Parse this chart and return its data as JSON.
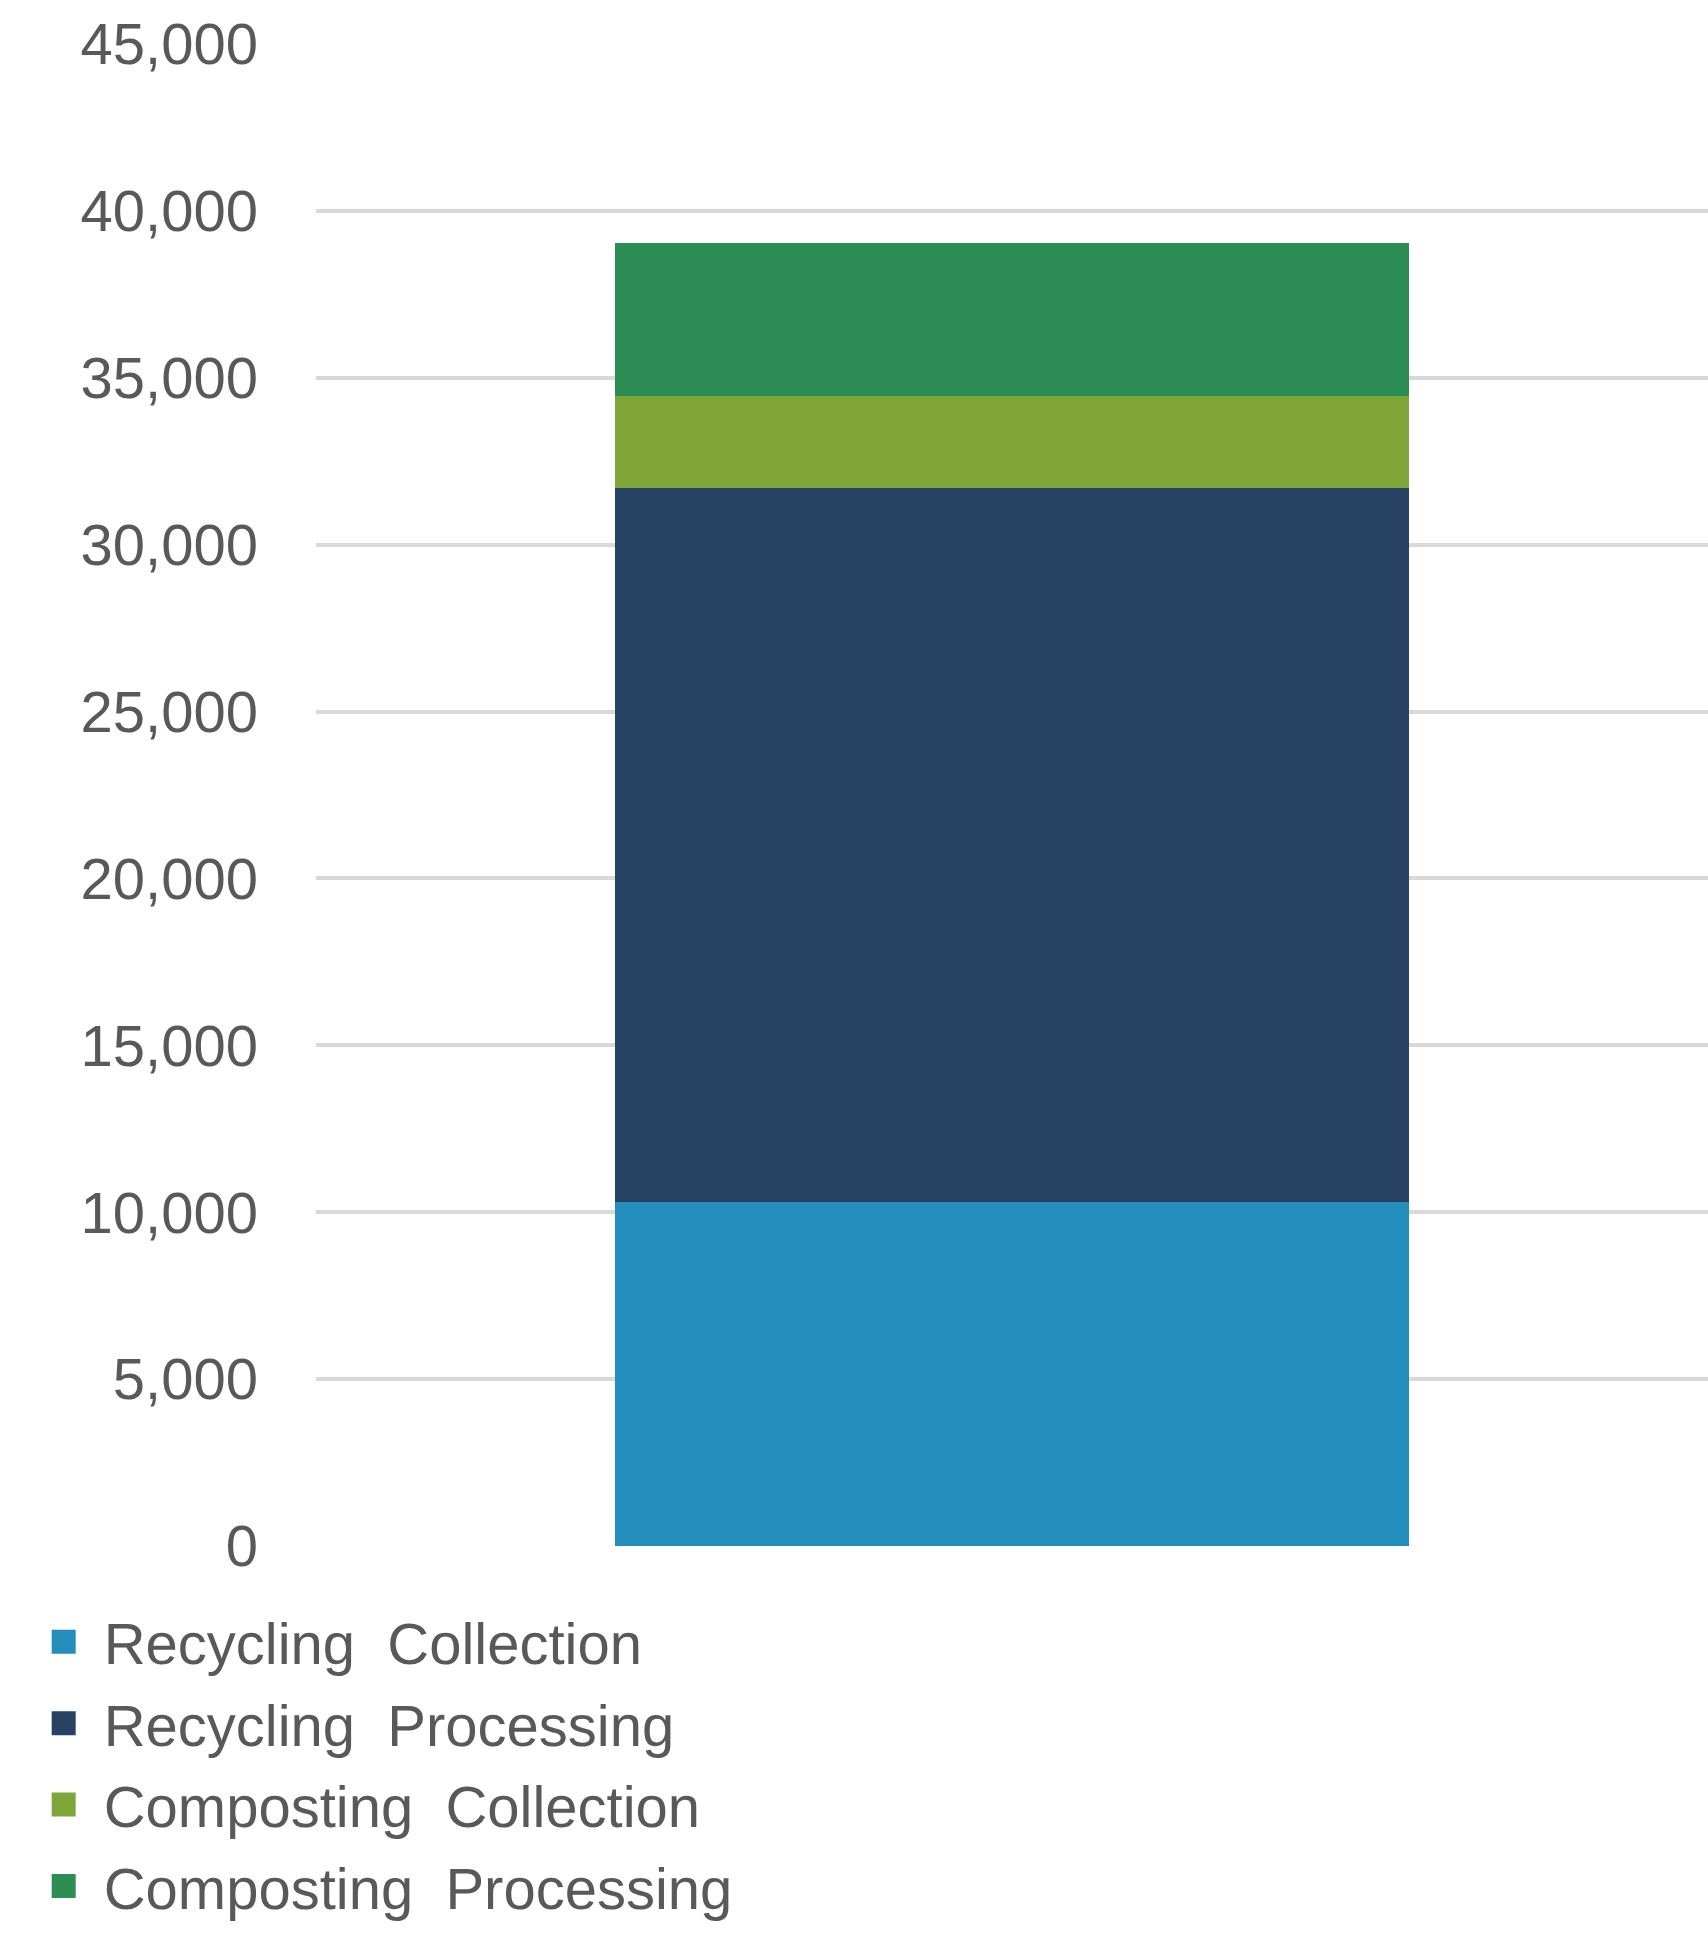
{
  "chart_data": {
    "type": "bar",
    "stacked": true,
    "categories": [
      null
    ],
    "series": [
      {
        "name": "Recycling  Collection",
        "color": "#238dbb",
        "values": [
          10300
        ]
      },
      {
        "name": "Recycling  Processing",
        "color": "#264161",
        "values": [
          21400
        ]
      },
      {
        "name": "Composting  Collection",
        "color": "#80a639",
        "values": [
          2750
        ]
      },
      {
        "name": "Composting  Processing",
        "color": "#2c8e55",
        "values": [
          4600
        ]
      }
    ],
    "ylim": [
      0,
      45000
    ],
    "yticks": [
      {
        "value": 0,
        "label": "0"
      },
      {
        "value": 5000,
        "label": "5,000"
      },
      {
        "value": 10000,
        "label": "10,000"
      },
      {
        "value": 15000,
        "label": "15,000"
      },
      {
        "value": 20000,
        "label": "20,000"
      },
      {
        "value": 25000,
        "label": "25,000"
      },
      {
        "value": 30000,
        "label": "30,000"
      },
      {
        "value": 35000,
        "label": "35,000"
      },
      {
        "value": 40000,
        "label": "40,000"
      },
      {
        "value": 45000,
        "label": "45,000"
      }
    ],
    "grid": "y",
    "legend": "bottom"
  }
}
